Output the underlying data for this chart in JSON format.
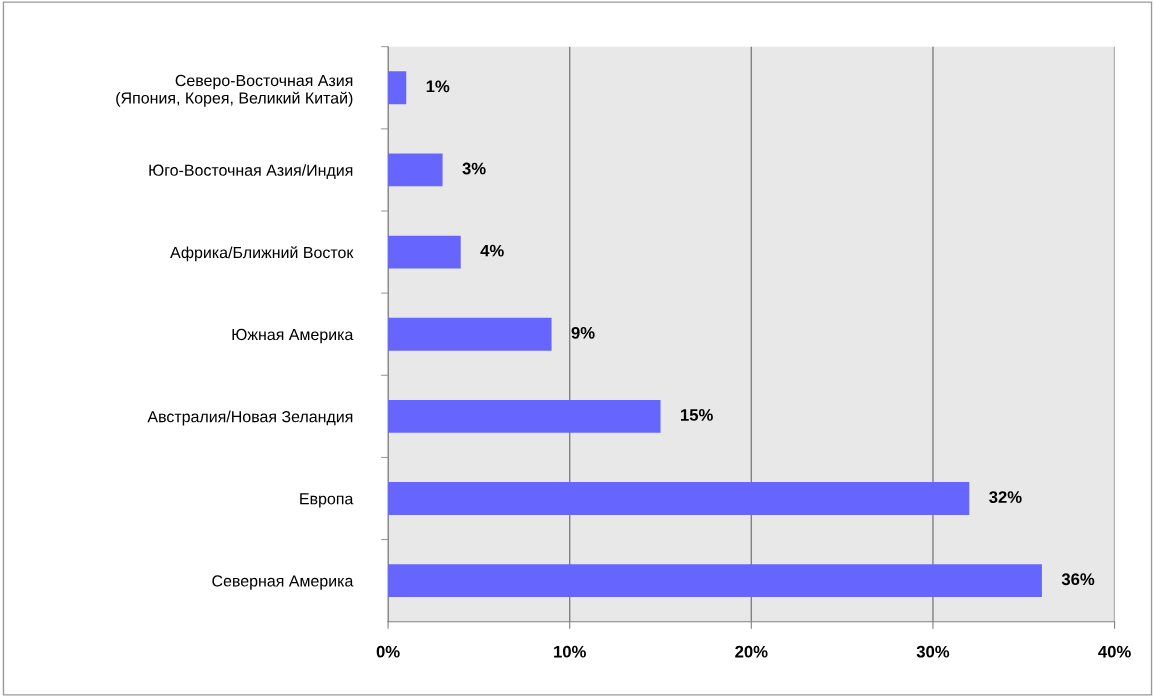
{
  "chart_data": {
    "type": "bar",
    "orientation": "horizontal",
    "categories": [
      "Северо-Восточная Азия\n(Япония, Корея, Великий Китай)",
      "Юго-Восточная Азия/Индия",
      "Африка/Ближний Восток",
      "Южная Америка",
      "Австралия/Новая Зеландия",
      "Европа",
      "Северная Америка"
    ],
    "values": [
      1,
      3,
      4,
      9,
      15,
      32,
      36
    ],
    "value_labels": [
      "1%",
      "3%",
      "4%",
      "9%",
      "15%",
      "32%",
      "36%"
    ],
    "color": "#6666ff",
    "xlim": [
      0,
      40
    ],
    "xticks": [
      {
        "value": 0,
        "label": "0%"
      },
      {
        "value": 10,
        "label": "10%"
      },
      {
        "value": 20,
        "label": "20%"
      },
      {
        "value": 30,
        "label": "30%"
      },
      {
        "value": 40,
        "label": "40%"
      }
    ],
    "grid": "x",
    "legend": false
  }
}
